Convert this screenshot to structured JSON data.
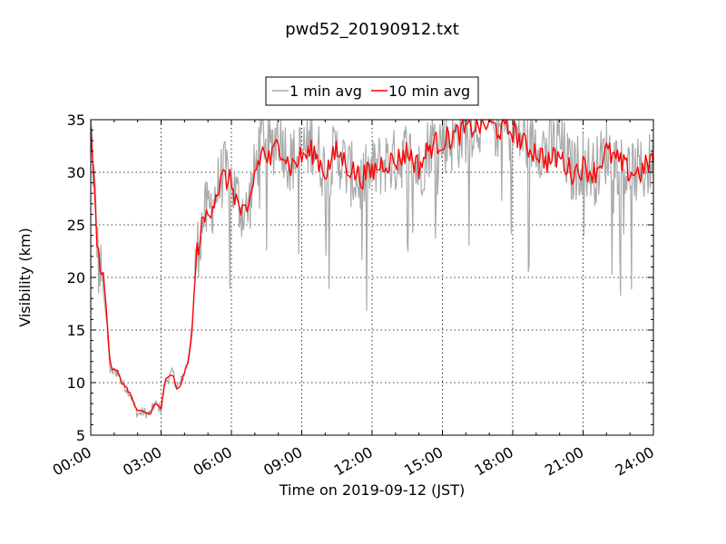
{
  "chart_data": {
    "type": "line",
    "title": "pwd52_20190912.txt",
    "xlabel": "Time on 2019-09-12 (JST)",
    "ylabel": "Visibility (km)",
    "xlim": [
      "00:00",
      "24:00"
    ],
    "ylim": [
      5,
      35
    ],
    "grid": true,
    "legend_position": "top-center",
    "x_ticks": [
      "00:00",
      "03:00",
      "06:00",
      "09:00",
      "12:00",
      "15:00",
      "18:00",
      "21:00",
      "24:00"
    ],
    "y_ticks": [
      5,
      10,
      15,
      20,
      25,
      30,
      35
    ],
    "series": [
      {
        "name": "1 min avg",
        "color": "#aaaaaa",
        "style": "noisy",
        "x": [
          "00:00",
          "00:10",
          "00:20",
          "00:30",
          "00:40",
          "00:50",
          "01:00",
          "01:10",
          "01:20",
          "01:30",
          "01:40",
          "01:50",
          "02:00",
          "02:15",
          "02:30",
          "02:45",
          "03:00",
          "03:10",
          "03:20",
          "03:30",
          "03:40",
          "03:50",
          "04:00",
          "04:10",
          "04:20",
          "04:30",
          "04:40",
          "04:50",
          "05:00",
          "05:20",
          "05:40",
          "06:00",
          "06:20",
          "06:40",
          "07:00",
          "07:20",
          "07:40",
          "08:00",
          "08:30",
          "09:00",
          "09:30",
          "10:00",
          "10:30",
          "11:00",
          "11:30",
          "12:00",
          "12:30",
          "13:00",
          "13:30",
          "14:00",
          "14:30",
          "15:00",
          "15:30",
          "16:00",
          "16:30",
          "17:00",
          "17:30",
          "18:00",
          "18:30",
          "19:00",
          "19:30",
          "20:00",
          "20:30",
          "21:00",
          "21:30",
          "22:00",
          "22:30",
          "23:00",
          "23:30",
          "24:00"
        ],
        "values": [
          35,
          28,
          21,
          20,
          16,
          11,
          11,
          11,
          10,
          9.5,
          9,
          8,
          7,
          7.2,
          7,
          8,
          7.5,
          10,
          10.5,
          11,
          9.5,
          10,
          11,
          12,
          15,
          22,
          24,
          26,
          26,
          28,
          30,
          29,
          27,
          26,
          30,
          34,
          32,
          34,
          31,
          32,
          33,
          30,
          32,
          30,
          29,
          30,
          31,
          31,
          32,
          30,
          33,
          33,
          33,
          34,
          35,
          35,
          34,
          34,
          33,
          33,
          32,
          33,
          30,
          31,
          30,
          32,
          31,
          30,
          30,
          31
        ]
      },
      {
        "name": "10 min avg",
        "color": "#ff0000",
        "style": "smooth",
        "x": [
          "00:00",
          "00:10",
          "00:20",
          "00:30",
          "00:40",
          "00:50",
          "01:00",
          "01:10",
          "01:20",
          "01:30",
          "01:40",
          "01:50",
          "02:00",
          "02:15",
          "02:30",
          "02:45",
          "03:00",
          "03:10",
          "03:20",
          "03:30",
          "03:40",
          "03:50",
          "04:00",
          "04:10",
          "04:20",
          "04:30",
          "04:40",
          "04:50",
          "05:00",
          "05:20",
          "05:40",
          "06:00",
          "06:20",
          "06:40",
          "07:00",
          "07:20",
          "07:40",
          "08:00",
          "08:30",
          "09:00",
          "09:30",
          "10:00",
          "10:30",
          "11:00",
          "11:30",
          "12:00",
          "12:30",
          "13:00",
          "13:30",
          "14:00",
          "14:30",
          "15:00",
          "15:30",
          "16:00",
          "16:30",
          "17:00",
          "17:30",
          "18:00",
          "18:30",
          "19:00",
          "19:30",
          "20:00",
          "20:30",
          "21:00",
          "21:30",
          "22:00",
          "22:30",
          "23:00",
          "23:30",
          "24:00"
        ],
        "values": [
          35,
          27,
          22,
          21,
          17,
          11.5,
          11.2,
          11,
          10,
          9.6,
          9,
          8,
          7.3,
          7.2,
          7,
          8,
          7.5,
          10.2,
          10.5,
          10.8,
          9.3,
          9.8,
          11,
          12,
          15.5,
          22,
          24,
          25.5,
          26,
          28,
          29.5,
          29,
          26.5,
          25.5,
          30,
          32,
          31,
          33,
          30.5,
          31.5,
          32,
          30,
          32,
          30.5,
          29.5,
          30,
          31,
          31,
          32,
          30.5,
          32.5,
          33,
          33.5,
          34,
          34.5,
          34.5,
          34,
          34,
          32.5,
          32,
          31,
          31.5,
          30,
          30.5,
          30,
          32,
          31,
          30,
          30,
          31.5
        ]
      }
    ]
  }
}
